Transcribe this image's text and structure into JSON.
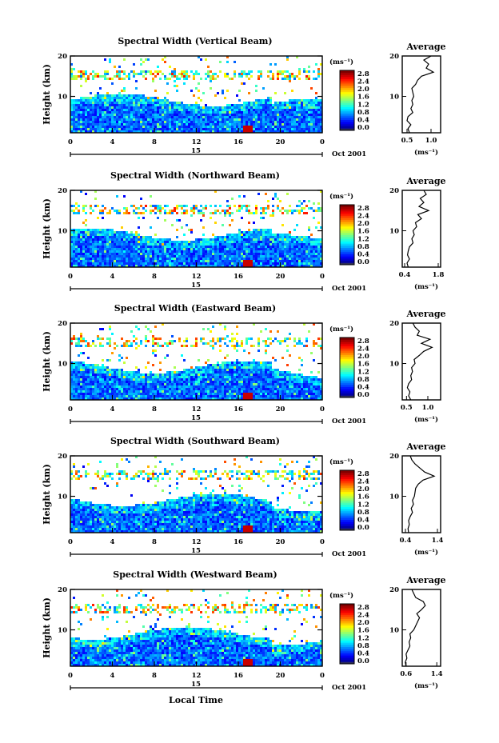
{
  "figure": {
    "x_axis_label": "Local Time",
    "avg_title": "Average",
    "y_label": "Height (km)",
    "colorbar_unit": "(ms⁻¹)",
    "avg_xlabel": "(ms⁻¹)",
    "date_text": "Oct 2001",
    "day_label": "15"
  },
  "chart_data": [
    {
      "type": "heatmap",
      "title": "Spectral Width (Vertical Beam)",
      "xlabel": "",
      "ylabel": "Height (km)",
      "xlim": [
        0,
        24
      ],
      "ylim": [
        1,
        20
      ],
      "x_ticks": [
        "0",
        "4",
        "8",
        "12",
        "16",
        "20",
        "0"
      ],
      "y_ticks": [
        "10",
        "20"
      ],
      "colorbar": {
        "unit": "(ms⁻¹)",
        "ticks": [
          "0.0",
          "0.4",
          "0.8",
          "1.2",
          "1.6",
          "2.0",
          "2.4",
          "2.8"
        ],
        "range": [
          0.0,
          2.8
        ]
      },
      "date": "Oct 2001",
      "day": "15",
      "average": {
        "title": "Average",
        "xlabel": "(ms⁻¹)",
        "x_ticks": [
          "0.5",
          "1.0"
        ],
        "xlim": [
          0.4,
          1.2
        ],
        "ylim": [
          1,
          20
        ],
        "heights": [
          1,
          2,
          3,
          4,
          5,
          6,
          7,
          8,
          9,
          10,
          11,
          12,
          13,
          14,
          15,
          16,
          17,
          18,
          19,
          20
        ],
        "values": [
          0.55,
          0.52,
          0.58,
          0.5,
          0.52,
          0.62,
          0.58,
          0.62,
          0.6,
          0.64,
          0.62,
          0.6,
          0.68,
          0.72,
          0.8,
          1.05,
          0.9,
          0.95,
          0.85,
          1.0
        ]
      }
    },
    {
      "type": "heatmap",
      "title": "Spectral Width (Northward Beam)",
      "xlabel": "",
      "ylabel": "Height (km)",
      "xlim": [
        0,
        24
      ],
      "ylim": [
        1,
        20
      ],
      "x_ticks": [
        "0",
        "4",
        "8",
        "12",
        "16",
        "20",
        "0"
      ],
      "y_ticks": [
        "10",
        "20"
      ],
      "colorbar": {
        "unit": "(ms⁻¹)",
        "ticks": [
          "0.0",
          "0.4",
          "0.8",
          "1.2",
          "1.6",
          "2.0",
          "2.4",
          "2.8"
        ],
        "range": [
          0.0,
          2.8
        ]
      },
      "date": "Oct 2001",
      "day": "15",
      "average": {
        "title": "Average",
        "xlabel": "(ms⁻¹)",
        "x_ticks": [
          "0.4",
          "1.8"
        ],
        "xlim": [
          0.3,
          1.9
        ],
        "ylim": [
          1,
          20
        ],
        "heights": [
          1,
          2,
          3,
          4,
          5,
          6,
          7,
          8,
          9,
          10,
          11,
          12,
          13,
          14,
          15,
          16,
          17,
          18,
          19,
          20
        ],
        "values": [
          0.55,
          0.5,
          0.6,
          0.52,
          0.55,
          0.6,
          0.75,
          0.7,
          0.8,
          0.75,
          0.9,
          0.85,
          1.1,
          0.95,
          1.4,
          1.0,
          1.2,
          1.05,
          1.3,
          1.2
        ]
      }
    },
    {
      "type": "heatmap",
      "title": "Spectral Width (Eastward Beam)",
      "xlabel": "",
      "ylabel": "Height (km)",
      "xlim": [
        0,
        24
      ],
      "ylim": [
        1,
        20
      ],
      "x_ticks": [
        "0",
        "4",
        "8",
        "12",
        "16",
        "20",
        "0"
      ],
      "y_ticks": [
        "10",
        "20"
      ],
      "colorbar": {
        "unit": "(ms⁻¹)",
        "ticks": [
          "0.0",
          "0.4",
          "0.8",
          "1.2",
          "1.6",
          "2.0",
          "2.4",
          "2.8"
        ],
        "range": [
          0.0,
          2.8
        ]
      },
      "date": "Oct 2001",
      "day": "15",
      "average": {
        "title": "Average",
        "xlabel": "(ms⁻¹)",
        "x_ticks": [
          "0.5",
          "1.0"
        ],
        "xlim": [
          0.4,
          1.3
        ],
        "ylim": [
          1,
          20
        ],
        "heights": [
          1,
          2,
          3,
          4,
          5,
          6,
          7,
          8,
          9,
          10,
          11,
          12,
          13,
          14,
          15,
          16,
          17,
          18,
          19,
          20
        ],
        "values": [
          0.6,
          0.55,
          0.58,
          0.52,
          0.55,
          0.62,
          0.6,
          0.64,
          0.62,
          0.7,
          0.68,
          0.8,
          0.9,
          1.1,
          0.85,
          1.05,
          0.75,
          0.8,
          0.7,
          0.65
        ]
      }
    },
    {
      "type": "heatmap",
      "title": "Spectral Width (Southward Beam)",
      "xlabel": "",
      "ylabel": "Height (km)",
      "xlim": [
        0,
        24
      ],
      "ylim": [
        1,
        20
      ],
      "x_ticks": [
        "0",
        "4",
        "8",
        "12",
        "16",
        "20",
        "0"
      ],
      "y_ticks": [
        "10",
        "20"
      ],
      "colorbar": {
        "unit": "(ms⁻¹)",
        "ticks": [
          "0.0",
          "0.4",
          "0.8",
          "1.2",
          "1.6",
          "2.0",
          "2.4",
          "2.8"
        ],
        "range": [
          0.0,
          2.8
        ]
      },
      "date": "Oct 2001",
      "day": "15",
      "average": {
        "title": "Average",
        "xlabel": "(ms⁻¹)",
        "x_ticks": [
          "0.4",
          "1.4"
        ],
        "xlim": [
          0.3,
          1.5
        ],
        "ylim": [
          1,
          20
        ],
        "heights": [
          1,
          2,
          3,
          4,
          5,
          6,
          7,
          8,
          9,
          10,
          11,
          12,
          13,
          14,
          15,
          16,
          17,
          18,
          19,
          20
        ],
        "values": [
          0.5,
          0.48,
          0.52,
          0.5,
          0.55,
          0.62,
          0.58,
          0.65,
          0.62,
          0.68,
          0.7,
          0.72,
          0.8,
          0.95,
          1.3,
          1.0,
          0.85,
          0.7,
          0.6,
          0.55
        ]
      }
    },
    {
      "type": "heatmap",
      "title": "Spectral Width (Westward Beam)",
      "xlabel": "Local Time",
      "ylabel": "Height (km)",
      "xlim": [
        0,
        24
      ],
      "ylim": [
        1,
        20
      ],
      "x_ticks": [
        "0",
        "4",
        "8",
        "12",
        "16",
        "20",
        "0"
      ],
      "y_ticks": [
        "10",
        "20"
      ],
      "colorbar": {
        "unit": "(ms⁻¹)",
        "ticks": [
          "0.0",
          "0.4",
          "0.8",
          "1.2",
          "1.6",
          "2.0",
          "2.4",
          "2.8"
        ],
        "range": [
          0.0,
          2.8
        ]
      },
      "date": "Oct 2001",
      "day": "15",
      "average": {
        "title": "Average",
        "xlabel": "(ms⁻¹)",
        "x_ticks": [
          "0.6",
          "1.4"
        ],
        "xlim": [
          0.5,
          1.5
        ],
        "ylim": [
          1,
          20
        ],
        "heights": [
          1,
          2,
          3,
          4,
          5,
          6,
          7,
          8,
          9,
          10,
          11,
          12,
          13,
          14,
          15,
          16,
          17,
          18,
          19,
          20
        ],
        "values": [
          0.6,
          0.58,
          0.62,
          0.6,
          0.65,
          0.7,
          0.68,
          0.72,
          0.7,
          0.8,
          0.85,
          0.9,
          0.95,
          0.88,
          1.0,
          1.1,
          1.05,
          0.85,
          0.8,
          0.75
        ]
      }
    }
  ]
}
